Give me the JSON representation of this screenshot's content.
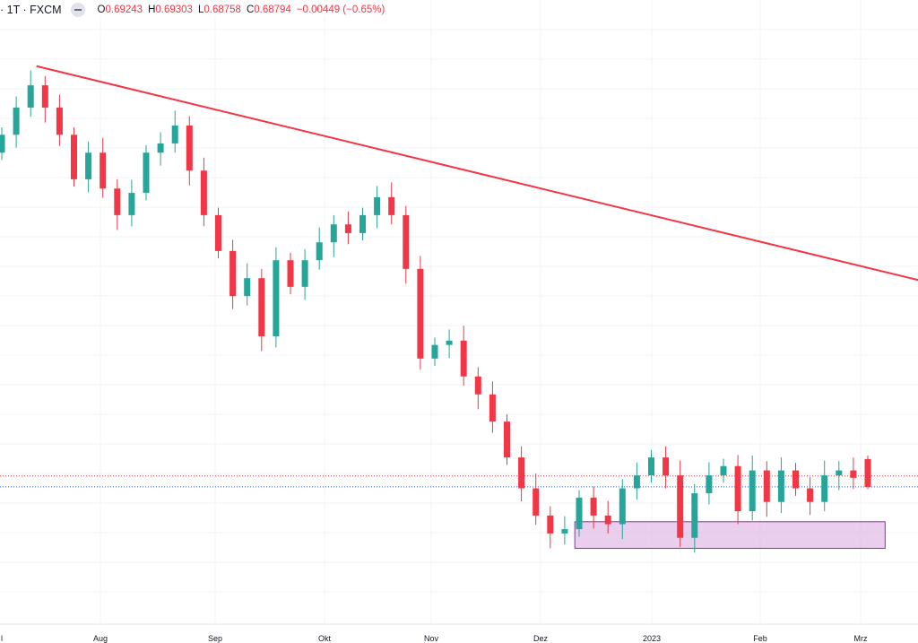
{
  "header": {
    "symbol": "· 1T · FXCM",
    "open_label": "O",
    "open": "0.69243",
    "high_label": "H",
    "high": "0.69303",
    "low_label": "L",
    "low": "0.68758",
    "close_label": "C",
    "close": "0.68794",
    "change": "−0.00449 (−0.65%)"
  },
  "colors": {
    "up": "#26a69a",
    "down": "#f23645",
    "trendline": "#f23645",
    "zone_fill": "#e1bee7",
    "zone_border": "#9c27b0",
    "last_price_line": "#2962ff",
    "prev_close_line": "#f23645"
  },
  "chart_data": {
    "type": "candlestick",
    "title": "1T · FXCM",
    "xlabel": "",
    "ylabel": "",
    "x_tick_labels": [
      "l",
      "Aug",
      "Sep",
      "Okt",
      "Nov",
      "Dez",
      "2023",
      "Feb",
      "Mrz"
    ],
    "ylim": [
      0.6666,
      0.7667
    ],
    "grid": true,
    "first_open": 0.742,
    "closes": [
      0.7449,
      0.7493,
      0.7529,
      0.7493,
      0.7449,
      0.7377,
      0.742,
      0.7362,
      0.7319,
      0.7355,
      0.742,
      0.7435,
      0.7464,
      0.7391,
      0.7319,
      0.7261,
      0.7188,
      0.7217,
      0.7123,
      0.7246,
      0.7203,
      0.7246,
      0.7275,
      0.7304,
      0.729,
      0.7319,
      0.7348,
      0.7319,
      0.7232,
      0.7087,
      0.7109,
      0.7116,
      0.7058,
      0.7029,
      0.6985,
      0.6927,
      0.6877,
      0.6833,
      0.6804,
      0.6811,
      0.6862,
      0.6833,
      0.6819,
      0.6877,
      0.6898,
      0.6927,
      0.6898,
      0.6797,
      0.6869,
      0.6898,
      0.6913,
      0.684,
      0.6906,
      0.6855,
      0.6906,
      0.6877,
      0.6855,
      0.6898,
      0.6906,
      0.6894
    ],
    "last_candle": {
      "o": 0.69243,
      "h": 0.69303,
      "l": 0.68758,
      "c": 0.68794
    },
    "trendline": {
      "start_price": 0.756,
      "end_price": 0.7214,
      "start_index": 2.4,
      "end_index": 63.5
    },
    "support_zone": {
      "top": 0.6823,
      "bottom": 0.678,
      "start_index": 39.7,
      "end_index": 61.2
    },
    "last_price": 0.68794,
    "prev_close_line": 0.6897
  }
}
